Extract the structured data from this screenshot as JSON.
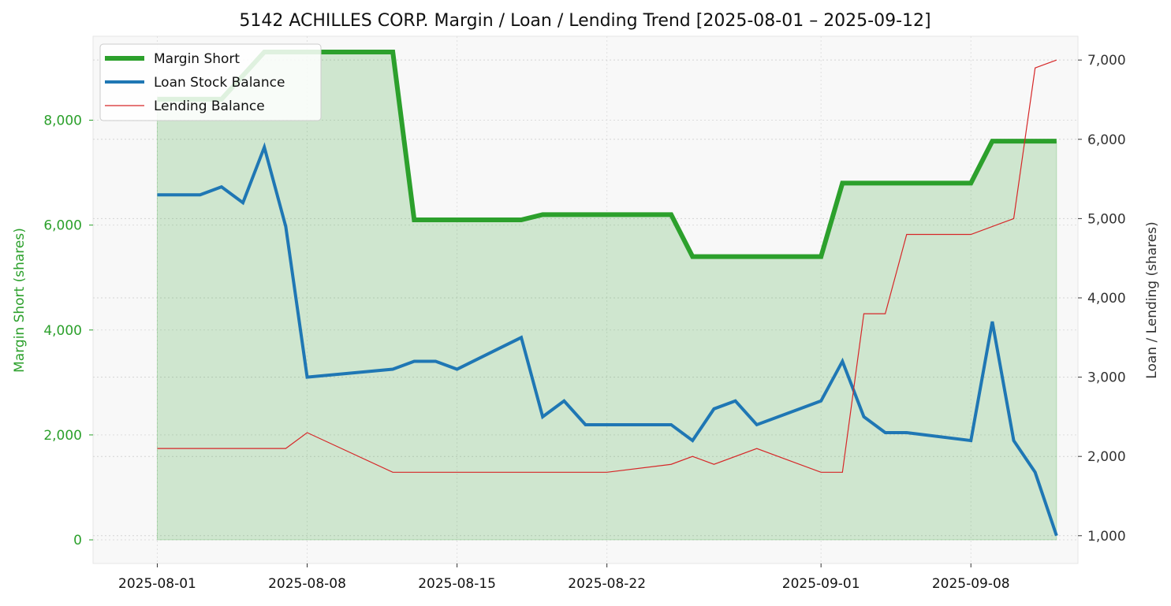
{
  "chart_data": {
    "type": "line",
    "title": "5142 ACHILLES CORP. Margin / Loan / Lending Trend [2025-08-01 – 2025-09-12]",
    "ylabel_left": "Margin Short (shares)",
    "ylabel_right": "Loan / Lending (shares)",
    "ylim_left": [
      -450,
      9600
    ],
    "ylim_right": [
      650,
      7300
    ],
    "yticks_left": [
      0,
      2000,
      4000,
      6000,
      8000
    ],
    "yticks_left_labels": [
      "0",
      "2,000",
      "4,000",
      "6,000",
      "8,000"
    ],
    "yticks_right": [
      1000,
      2000,
      3000,
      4000,
      5000,
      6000,
      7000
    ],
    "yticks_right_labels": [
      "1,000",
      "2,000",
      "3,000",
      "4,000",
      "5,000",
      "6,000",
      "7,000"
    ],
    "xlim": [
      "2025-07-29",
      "2025-09-13"
    ],
    "xticks": [
      "2025-08-01",
      "2025-08-08",
      "2025-08-15",
      "2025-08-22",
      "2025-09-01",
      "2025-09-08"
    ],
    "xtick_labels": [
      "2025-08-01",
      "2025-08-08",
      "2025-08-15",
      "2025-08-22",
      "2025-09-01",
      "2025-09-08"
    ],
    "grid": true,
    "legend_position": "top-left",
    "series": [
      {
        "name": "Margin Short",
        "axis": "left",
        "color": "#2ca02c",
        "fill": true,
        "points": [
          [
            "2025-08-01",
            8400
          ],
          [
            "2025-08-02",
            8400
          ],
          [
            "2025-08-03",
            8400
          ],
          [
            "2025-08-04",
            8400
          ],
          [
            "2025-08-06",
            9300
          ],
          [
            "2025-08-07",
            9300
          ],
          [
            "2025-08-08",
            9300
          ],
          [
            "2025-08-11",
            9300
          ],
          [
            "2025-08-12",
            9300
          ],
          [
            "2025-08-13",
            6100
          ],
          [
            "2025-08-14",
            6100
          ],
          [
            "2025-08-15",
            6100
          ],
          [
            "2025-08-18",
            6100
          ],
          [
            "2025-08-19",
            6200
          ],
          [
            "2025-08-20",
            6200
          ],
          [
            "2025-08-21",
            6200
          ],
          [
            "2025-08-22",
            6200
          ],
          [
            "2025-08-25",
            6200
          ],
          [
            "2025-08-26",
            5400
          ],
          [
            "2025-08-27",
            5400
          ],
          [
            "2025-08-28",
            5400
          ],
          [
            "2025-08-29",
            5400
          ],
          [
            "2025-09-01",
            5400
          ],
          [
            "2025-09-02",
            6800
          ],
          [
            "2025-09-03",
            6800
          ],
          [
            "2025-09-04",
            6800
          ],
          [
            "2025-09-05",
            6800
          ],
          [
            "2025-09-08",
            6800
          ],
          [
            "2025-09-09",
            7600
          ],
          [
            "2025-09-10",
            7600
          ],
          [
            "2025-09-11",
            7600
          ],
          [
            "2025-09-12",
            7600
          ]
        ]
      },
      {
        "name": "Loan Stock Balance",
        "axis": "right",
        "color": "#1f77b4",
        "points": [
          [
            "2025-08-01",
            5300
          ],
          [
            "2025-08-02",
            5300
          ],
          [
            "2025-08-03",
            5300
          ],
          [
            "2025-08-04",
            5400
          ],
          [
            "2025-08-05",
            5200
          ],
          [
            "2025-08-06",
            5900
          ],
          [
            "2025-08-07",
            4900
          ],
          [
            "2025-08-08",
            3000
          ],
          [
            "2025-08-12",
            3100
          ],
          [
            "2025-08-13",
            3200
          ],
          [
            "2025-08-14",
            3200
          ],
          [
            "2025-08-15",
            3100
          ],
          [
            "2025-08-18",
            3500
          ],
          [
            "2025-08-19",
            2500
          ],
          [
            "2025-08-20",
            2700
          ],
          [
            "2025-08-21",
            2400
          ],
          [
            "2025-08-22",
            2400
          ],
          [
            "2025-08-25",
            2400
          ],
          [
            "2025-08-26",
            2200
          ],
          [
            "2025-08-27",
            2600
          ],
          [
            "2025-08-28",
            2700
          ],
          [
            "2025-08-29",
            2400
          ],
          [
            "2025-09-01",
            2700
          ],
          [
            "2025-09-02",
            3200
          ],
          [
            "2025-09-03",
            2500
          ],
          [
            "2025-09-04",
            2300
          ],
          [
            "2025-09-05",
            2300
          ],
          [
            "2025-09-08",
            2200
          ],
          [
            "2025-09-09",
            3700
          ],
          [
            "2025-09-10",
            2200
          ],
          [
            "2025-09-11",
            1800
          ],
          [
            "2025-09-12",
            1000
          ]
        ]
      },
      {
        "name": "Lending Balance",
        "axis": "right",
        "color": "#d62728",
        "points": [
          [
            "2025-08-01",
            2100
          ],
          [
            "2025-08-07",
            2100
          ],
          [
            "2025-08-08",
            2300
          ],
          [
            "2025-08-12",
            1800
          ],
          [
            "2025-08-22",
            1800
          ],
          [
            "2025-08-25",
            1900
          ],
          [
            "2025-08-26",
            2000
          ],
          [
            "2025-08-27",
            1900
          ],
          [
            "2025-08-29",
            2100
          ],
          [
            "2025-09-01",
            1800
          ],
          [
            "2025-09-02",
            1800
          ],
          [
            "2025-09-03",
            3800
          ],
          [
            "2025-09-04",
            3800
          ],
          [
            "2025-09-05",
            4800
          ],
          [
            "2025-09-08",
            4800
          ],
          [
            "2025-09-10",
            5000
          ],
          [
            "2025-09-11",
            6900
          ],
          [
            "2025-09-12",
            7000
          ]
        ]
      }
    ]
  },
  "colors": {
    "margin_axis": "#2ca02c",
    "right_axis": "#333333",
    "plot_background": "#f8f8f8"
  }
}
